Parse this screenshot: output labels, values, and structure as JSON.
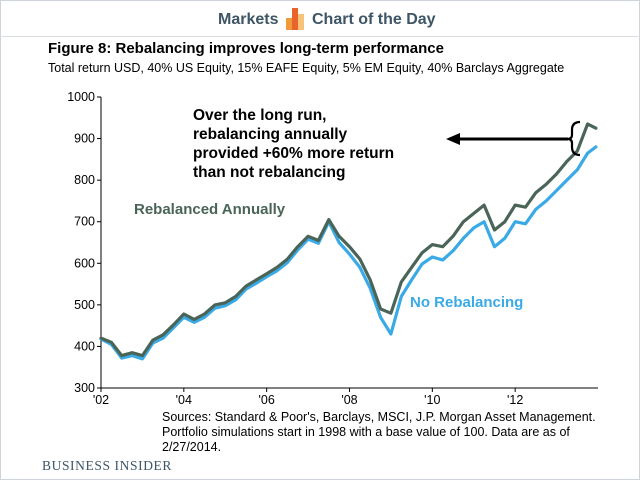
{
  "header": {
    "left_label": "Markets",
    "right_label": "Chart of the Day",
    "logo_icon": "bar-chart-icon",
    "logo_colors": [
      "#f29a3a",
      "#e8642a",
      "#f7c27a"
    ]
  },
  "brand": "BUSINESS INSIDER",
  "source_note": "Sources: Standard & Poor's, Barclays, MSCI, J.P. Morgan Asset Management. Portfolio simulations start in 1998 with a base value of 100. Data are as of 2/27/2014.",
  "chart_data": {
    "type": "line",
    "title": "Figure 8: Rebalancing improves long-term performance",
    "subtitle": "Total return USD, 40% US Equity, 15% EAFE Equity, 5% EM Equity, 40% Barclays Aggregate",
    "xlabel": "",
    "ylabel": "",
    "xlim": [
      2002,
      2014
    ],
    "ylim": [
      300,
      1000
    ],
    "x_ticks": [
      "'02",
      "'04",
      "'06",
      "'08",
      "'10",
      "'12"
    ],
    "x_tick_values": [
      2002,
      2004,
      2006,
      2008,
      2010,
      2012
    ],
    "y_ticks": [
      300,
      400,
      500,
      600,
      700,
      800,
      900,
      1000
    ],
    "grid": false,
    "x": [
      2002.0,
      2002.25,
      2002.5,
      2002.75,
      2003.0,
      2003.25,
      2003.5,
      2003.75,
      2004.0,
      2004.25,
      2004.5,
      2004.75,
      2005.0,
      2005.25,
      2005.5,
      2005.75,
      2006.0,
      2006.25,
      2006.5,
      2006.75,
      2007.0,
      2007.25,
      2007.5,
      2007.75,
      2008.0,
      2008.25,
      2008.5,
      2008.75,
      2009.0,
      2009.25,
      2009.5,
      2009.75,
      2010.0,
      2010.25,
      2010.5,
      2010.75,
      2011.0,
      2011.25,
      2011.5,
      2011.75,
      2012.0,
      2012.25,
      2012.5,
      2012.75,
      2013.0,
      2013.25,
      2013.5,
      2013.75,
      2013.95
    ],
    "series": [
      {
        "name": "Rebalanced Annually",
        "color": "#4a6558",
        "values": [
          420,
          410,
          378,
          385,
          378,
          415,
          428,
          452,
          478,
          465,
          478,
          500,
          505,
          520,
          545,
          560,
          575,
          590,
          610,
          640,
          665,
          655,
          705,
          665,
          640,
          610,
          560,
          490,
          480,
          555,
          590,
          625,
          645,
          640,
          665,
          700,
          720,
          740,
          680,
          700,
          740,
          735,
          770,
          790,
          815,
          845,
          870,
          935,
          925
        ]
      },
      {
        "name": "No Rebalancing",
        "color": "#3aaae6",
        "values": [
          418,
          405,
          372,
          378,
          370,
          408,
          420,
          445,
          470,
          458,
          470,
          492,
          498,
          512,
          538,
          552,
          568,
          582,
          602,
          632,
          658,
          648,
          700,
          650,
          622,
          590,
          540,
          470,
          430,
          520,
          560,
          598,
          615,
          608,
          630,
          660,
          685,
          700,
          640,
          660,
          700,
          695,
          730,
          750,
          775,
          800,
          825,
          865,
          880
        ]
      }
    ],
    "annotations": {
      "callout": [
        "Over the long run,",
        "rebalancing annually",
        "provided +60% more return",
        "than not rebalancing"
      ],
      "series_labels": [
        "Rebalanced Annually",
        "No Rebalancing"
      ]
    }
  }
}
